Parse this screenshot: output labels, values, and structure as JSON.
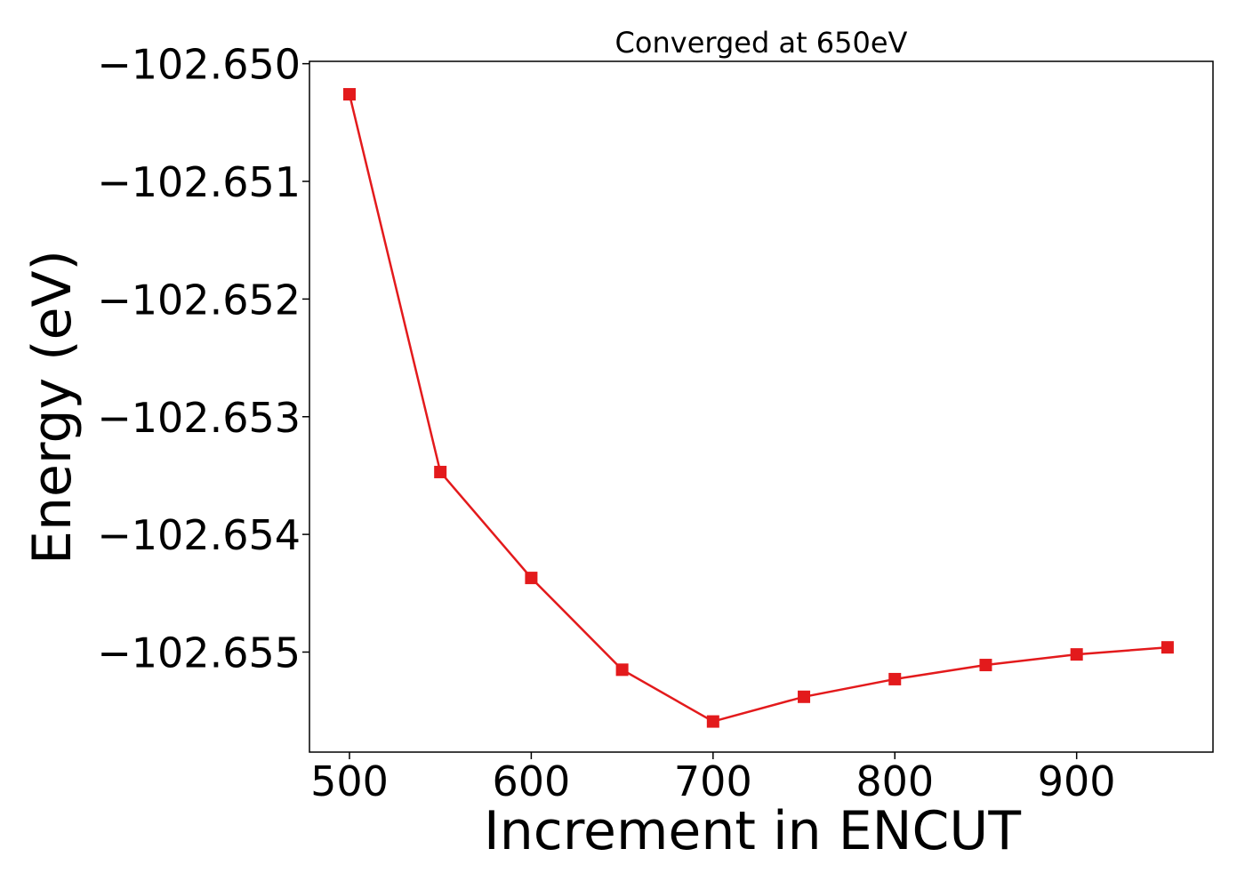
{
  "chart_data": {
    "type": "line",
    "title": "Converged at 650eV",
    "xlabel": "Increment in ENCUT",
    "ylabel": "Energy (eV)",
    "xlim": [
      478,
      975
    ],
    "ylim": [
      -102.65585,
      -102.64998
    ],
    "xticks": [
      500,
      600,
      700,
      800,
      900
    ],
    "xtick_labels": [
      "500",
      "600",
      "700",
      "800",
      "900"
    ],
    "yticks": [
      -102.65,
      -102.651,
      -102.652,
      -102.653,
      -102.654,
      -102.655
    ],
    "ytick_labels": [
      "−102.650",
      "−102.651",
      "−102.652",
      "−102.653",
      "−102.654",
      "−102.655"
    ],
    "grid": false,
    "series": [
      {
        "color": "#e31a1c",
        "marker": "square",
        "x": [
          500,
          550,
          600,
          650,
          700,
          750,
          800,
          850,
          900,
          950
        ],
        "y": [
          -102.65026,
          -102.65347,
          -102.65437,
          -102.65515,
          -102.65559,
          -102.65538,
          -102.65523,
          -102.65511,
          -102.65502,
          -102.65496
        ]
      }
    ]
  }
}
